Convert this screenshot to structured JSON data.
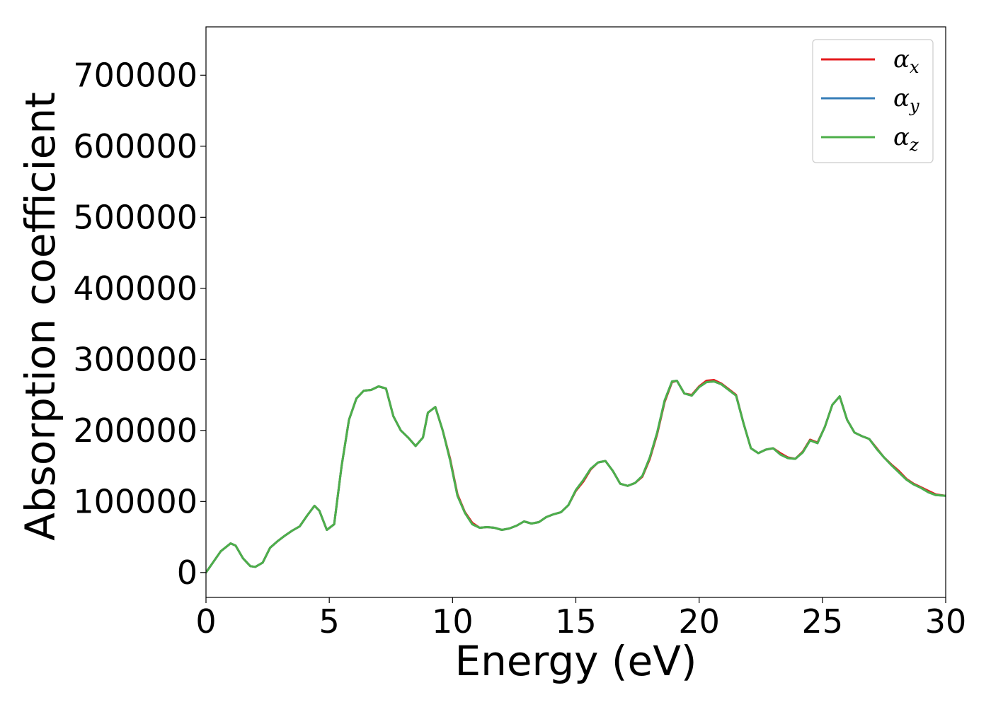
{
  "chart_data": {
    "type": "line",
    "title": "",
    "xlabel": "Energy (eV)",
    "ylabel": "Absorption coefficient",
    "xlim": [
      0,
      30
    ],
    "ylim": [
      -35000,
      768000
    ],
    "xticks": [
      0,
      5,
      10,
      15,
      20,
      25,
      30
    ],
    "xtick_labels": [
      "0",
      "5",
      "10",
      "15",
      "20",
      "25",
      "30"
    ],
    "yticks": [
      0,
      100000,
      200000,
      300000,
      400000,
      500000,
      600000,
      700000
    ],
    "ytick_labels": [
      "0",
      "100000",
      "200000",
      "300000",
      "400000",
      "500000",
      "600000",
      "700000"
    ],
    "grid": false,
    "legend_position": "top-right",
    "x": [
      0,
      0.3,
      0.6,
      1.0,
      1.2,
      1.5,
      1.8,
      2.0,
      2.3,
      2.6,
      2.9,
      3.2,
      3.5,
      3.8,
      4.1,
      4.4,
      4.6,
      4.9,
      5.2,
      5.5,
      5.8,
      6.1,
      6.4,
      6.7,
      7.0,
      7.3,
      7.6,
      7.9,
      8.2,
      8.5,
      8.8,
      9.0,
      9.3,
      9.6,
      9.9,
      10.2,
      10.5,
      10.8,
      11.1,
      11.4,
      11.7,
      12.0,
      12.3,
      12.6,
      12.9,
      13.2,
      13.5,
      13.8,
      14.1,
      14.4,
      14.7,
      15.0,
      15.3,
      15.6,
      15.9,
      16.2,
      16.5,
      16.8,
      17.1,
      17.4,
      17.7,
      18.0,
      18.3,
      18.6,
      18.9,
      19.1,
      19.4,
      19.7,
      20.0,
      20.3,
      20.6,
      20.9,
      21.2,
      21.5,
      21.8,
      22.1,
      22.4,
      22.7,
      23.0,
      23.3,
      23.6,
      23.9,
      24.2,
      24.5,
      24.8,
      25.1,
      25.4,
      25.7,
      26.0,
      26.3,
      26.6,
      26.9,
      27.2,
      27.5,
      27.8,
      28.1,
      28.4,
      28.7,
      29.0,
      29.3,
      29.6,
      30.0
    ],
    "series": [
      {
        "name": "αx",
        "color": "#e41a1c",
        "values": [
          0,
          15000,
          30000,
          41000,
          38000,
          20000,
          9000,
          8000,
          14000,
          35000,
          44000,
          52000,
          59000,
          65000,
          80000,
          94000,
          87000,
          60000,
          68000,
          150000,
          215000,
          245000,
          256000,
          257000,
          262000,
          259000,
          220000,
          200000,
          190000,
          178000,
          190000,
          225000,
          233000,
          200000,
          160000,
          110000,
          85000,
          70000,
          63000,
          64000,
          63000,
          60000,
          62000,
          66000,
          72000,
          69000,
          71000,
          78000,
          82000,
          85000,
          95000,
          115000,
          128000,
          145000,
          155000,
          157000,
          143000,
          125000,
          122000,
          126000,
          135000,
          160000,
          195000,
          240000,
          268000,
          270000,
          252000,
          250000,
          262000,
          270000,
          271000,
          266000,
          258000,
          250000,
          210000,
          175000,
          168000,
          173000,
          175000,
          168000,
          162000,
          160000,
          170000,
          187000,
          183000,
          205000,
          236000,
          248000,
          215000,
          197000,
          192000,
          188000,
          175000,
          162000,
          152000,
          143000,
          132000,
          125000,
          120000,
          115000,
          110000,
          108000
        ]
      },
      {
        "name": "αy",
        "color": "#377eb8",
        "values": [
          0,
          15000,
          30000,
          41000,
          38000,
          20000,
          9000,
          8000,
          14000,
          35000,
          44000,
          52000,
          59000,
          65000,
          80000,
          94000,
          87000,
          60000,
          68000,
          150000,
          215000,
          245000,
          256000,
          257000,
          262000,
          259000,
          220000,
          200000,
          190000,
          178000,
          190000,
          225000,
          233000,
          200000,
          158000,
          108000,
          84000,
          68000,
          63000,
          64000,
          63000,
          60000,
          62000,
          66000,
          72000,
          69000,
          71000,
          78000,
          82000,
          85000,
          95000,
          116000,
          130000,
          146000,
          155000,
          157000,
          143000,
          125000,
          122000,
          126000,
          136000,
          162000,
          197000,
          242000,
          269000,
          270000,
          252000,
          249000,
          261000,
          268000,
          269000,
          265000,
          257000,
          249000,
          210000,
          175000,
          168000,
          173000,
          175000,
          166000,
          161000,
          160000,
          169000,
          186000,
          182000,
          205000,
          236000,
          248000,
          215000,
          197000,
          192000,
          188000,
          174000,
          162000,
          151000,
          141000,
          131000,
          124000,
          119000,
          113000,
          109000,
          108000
        ]
      },
      {
        "name": "αz",
        "color": "#4daf4a",
        "values": [
          0,
          15000,
          30000,
          41000,
          38000,
          20000,
          9000,
          8000,
          14000,
          35000,
          44000,
          52000,
          59000,
          65000,
          80000,
          94000,
          87000,
          60000,
          68000,
          150000,
          215000,
          245000,
          256000,
          257000,
          262000,
          259000,
          220000,
          200000,
          190000,
          178000,
          190000,
          225000,
          233000,
          200000,
          158000,
          108000,
          84000,
          68000,
          63000,
          64000,
          63000,
          60000,
          62000,
          66000,
          72000,
          69000,
          71000,
          78000,
          82000,
          85000,
          95000,
          116000,
          130000,
          146000,
          155000,
          157000,
          143000,
          125000,
          122000,
          126000,
          136000,
          162000,
          197000,
          242000,
          269000,
          270000,
          252000,
          249000,
          261000,
          268000,
          269000,
          265000,
          257000,
          249000,
          210000,
          175000,
          168000,
          173000,
          175000,
          166000,
          161000,
          160000,
          169000,
          186000,
          182000,
          205000,
          236000,
          248000,
          215000,
          197000,
          192000,
          188000,
          174000,
          162000,
          151000,
          141000,
          131000,
          124000,
          119000,
          113000,
          109000,
          108000
        ]
      }
    ],
    "legend": [
      {
        "symbol": "α",
        "subscript": "x",
        "color": "#e41a1c"
      },
      {
        "symbol": "α",
        "subscript": "y",
        "color": "#377eb8"
      },
      {
        "symbol": "α",
        "subscript": "z",
        "color": "#4daf4a"
      }
    ]
  }
}
